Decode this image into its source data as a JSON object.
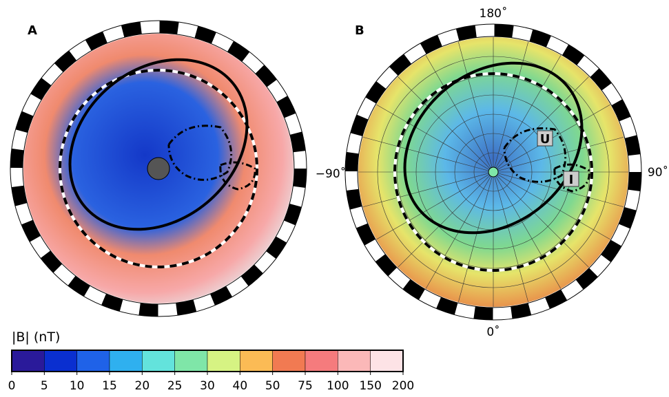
{
  "panels": [
    {
      "label": "A"
    },
    {
      "label": "B",
      "directions": {
        "top": "180˚",
        "bottom": "0˚",
        "left": "−90˚",
        "right": "90˚"
      },
      "regions": [
        "U",
        "I"
      ]
    }
  ],
  "colorbar": {
    "title": "|B| (nT)",
    "ticks": [
      0,
      5,
      10,
      15,
      20,
      25,
      30,
      40,
      50,
      75,
      100,
      150,
      200
    ],
    "colors": [
      "#2a1a9a",
      "#0a2fd0",
      "#1f62e8",
      "#2fb0ef",
      "#63e3dc",
      "#7fe6a8",
      "#d6f383",
      "#fbbb55",
      "#f17a52",
      "#f57b7d",
      "#fbb8b8",
      "#fde3e6"
    ]
  }
}
